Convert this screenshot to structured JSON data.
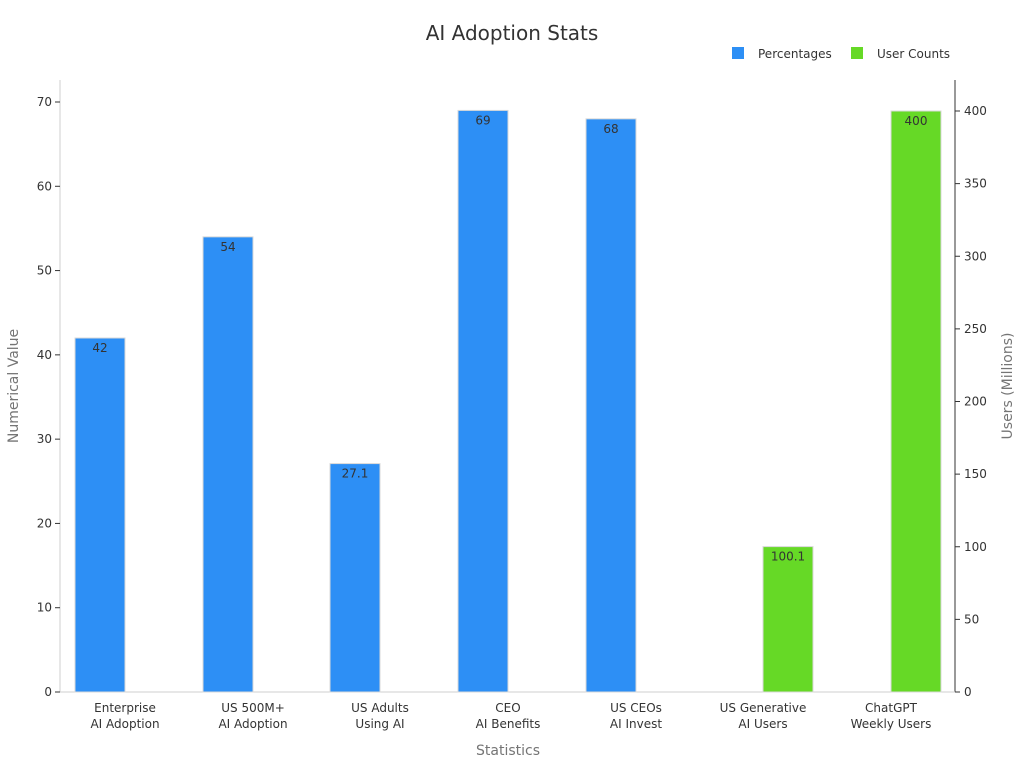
{
  "chart_data": {
    "type": "bar",
    "title": "AI Adoption Stats",
    "xlabel": "Statistics",
    "ylabel": "Numerical Value",
    "y2label": "Users (Millions)",
    "categories": [
      [
        "Enterprise",
        "AI Adoption"
      ],
      [
        "US 500M+",
        "AI Adoption"
      ],
      [
        "US Adults",
        "Using AI"
      ],
      [
        "CEO",
        "AI Benefits"
      ],
      [
        "US CEOs",
        "AI Invest"
      ],
      [
        "US Generative",
        "AI Users"
      ],
      [
        "ChatGPT",
        "Weekly Users"
      ]
    ],
    "series": [
      {
        "name": "Percentages",
        "axis": "left",
        "color": "#2d8ff5",
        "values": [
          42,
          54,
          27.1,
          69,
          68,
          null,
          null
        ],
        "labels": [
          "42",
          "54",
          "27.1",
          "69",
          "68",
          "",
          ""
        ]
      },
      {
        "name": "User Counts",
        "axis": "right",
        "color": "#66d926",
        "values": [
          null,
          null,
          null,
          null,
          null,
          100.1,
          400
        ],
        "labels": [
          "",
          "",
          "",
          "",
          "",
          "100.1",
          "400"
        ]
      }
    ],
    "ylim": [
      0,
      72.5
    ],
    "yticks": [
      0,
      10,
      20,
      30,
      40,
      50,
      60,
      70
    ],
    "y2lim": [
      0,
      420
    ],
    "y2ticks": [
      0,
      50,
      100,
      150,
      200,
      250,
      300,
      350,
      400
    ],
    "legend_position": "top-right",
    "grid": false
  }
}
